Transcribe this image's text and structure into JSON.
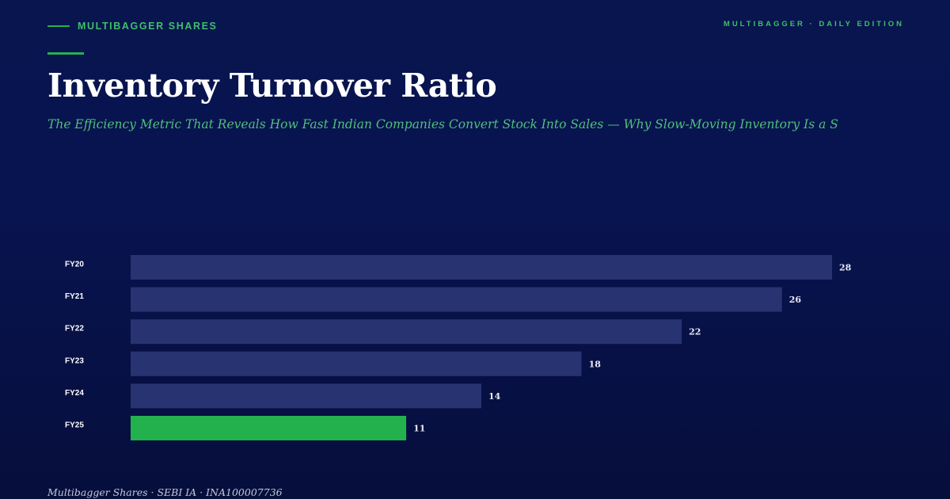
{
  "brand": {
    "name": "MULTIBAGGER SHARES",
    "edition": "MULTIBAGGER · DAILY EDITION"
  },
  "header": {
    "title": "Inventory Turnover Ratio",
    "subtitle": "The Efficiency Metric That Reveals How Fast Indian Companies Convert Stock Into Sales — Why Slow-Moving Inventory Is a S"
  },
  "chart_data": {
    "type": "bar",
    "orientation": "horizontal",
    "categories": [
      "FY20",
      "FY21",
      "FY22",
      "FY23",
      "FY24",
      "FY25"
    ],
    "values": [
      28,
      26,
      22,
      18,
      14,
      11
    ],
    "title": "",
    "xlabel": "",
    "ylabel": "",
    "xlim": [
      0,
      28
    ],
    "grid": false,
    "legend": "none",
    "colors": {
      "default": "#283371",
      "highlight": "#22b14c"
    },
    "highlight_category": "FY25"
  },
  "footer": {
    "text": "Multibagger Shares · SEBI IA · INA100007736"
  }
}
